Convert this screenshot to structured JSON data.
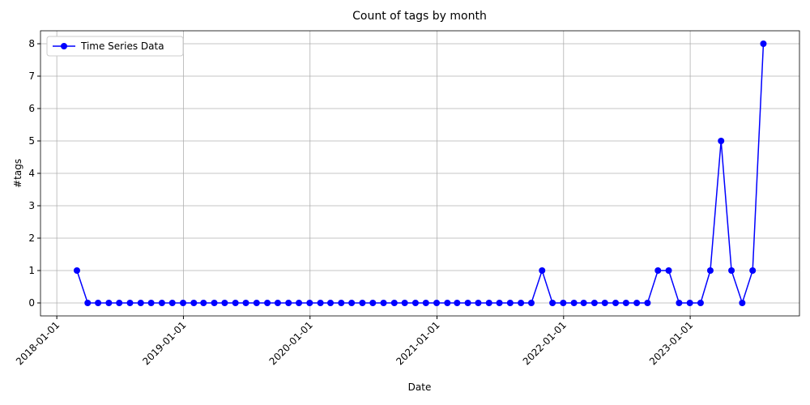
{
  "chart_data": {
    "type": "line",
    "title": "Count of tags by month",
    "xlabel": "Date",
    "ylabel": "#tags",
    "x": [
      "2018-02-28",
      "2018-03-31",
      "2018-04-30",
      "2018-05-31",
      "2018-06-30",
      "2018-07-31",
      "2018-08-31",
      "2018-09-30",
      "2018-10-31",
      "2018-11-30",
      "2018-12-31",
      "2019-01-31",
      "2019-02-28",
      "2019-03-31",
      "2019-04-30",
      "2019-05-31",
      "2019-06-30",
      "2019-07-31",
      "2019-08-31",
      "2019-09-30",
      "2019-10-31",
      "2019-11-30",
      "2019-12-31",
      "2020-01-31",
      "2020-02-29",
      "2020-03-31",
      "2020-04-30",
      "2020-05-31",
      "2020-06-30",
      "2020-07-31",
      "2020-08-31",
      "2020-09-30",
      "2020-10-31",
      "2020-11-30",
      "2020-12-31",
      "2021-01-31",
      "2021-02-28",
      "2021-03-31",
      "2021-04-30",
      "2021-05-31",
      "2021-06-30",
      "2021-07-31",
      "2021-08-31",
      "2021-09-30",
      "2021-10-31",
      "2021-11-30",
      "2021-12-31",
      "2022-01-31",
      "2022-02-28",
      "2022-03-31",
      "2022-04-30",
      "2022-05-31",
      "2022-06-30",
      "2022-07-31",
      "2022-08-31",
      "2022-09-30",
      "2022-10-31",
      "2022-11-30",
      "2022-12-31",
      "2023-01-31",
      "2023-02-28",
      "2023-03-31",
      "2023-04-30",
      "2023-05-31",
      "2023-06-30",
      "2023-07-31"
    ],
    "series": [
      {
        "name": "Time Series Data",
        "color": "#0000ff",
        "values": [
          1,
          0,
          0,
          0,
          0,
          0,
          0,
          0,
          0,
          0,
          0,
          0,
          0,
          0,
          0,
          0,
          0,
          0,
          0,
          0,
          0,
          0,
          0,
          0,
          0,
          0,
          0,
          0,
          0,
          0,
          0,
          0,
          0,
          0,
          0,
          0,
          0,
          0,
          0,
          0,
          0,
          0,
          0,
          0,
          1,
          0,
          0,
          0,
          0,
          0,
          0,
          0,
          0,
          0,
          0,
          1,
          1,
          0,
          0,
          0,
          1,
          5,
          1,
          0,
          1,
          8
        ]
      }
    ],
    "xlim": [
      "2017-11-15",
      "2023-11-12"
    ],
    "xticks": [
      "2018-01-01",
      "2019-01-01",
      "2020-01-01",
      "2021-01-01",
      "2022-01-01",
      "2023-01-01"
    ],
    "ylim": [
      -0.4,
      8.4
    ],
    "yticks": [
      0,
      1,
      2,
      3,
      4,
      5,
      6,
      7,
      8
    ],
    "grid": true,
    "legend": "upper left"
  }
}
